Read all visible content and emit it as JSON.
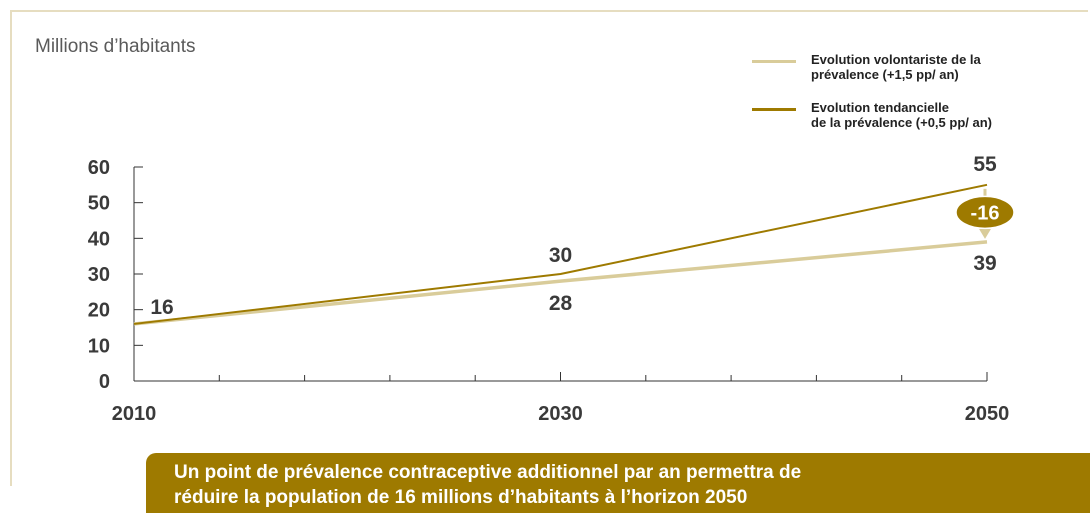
{
  "chart_data": {
    "type": "line",
    "ylabel": "Millions d’habitants",
    "ylim": [
      0,
      60
    ],
    "yticks": [
      0,
      10,
      20,
      30,
      40,
      50,
      60
    ],
    "x": [
      2010,
      2030,
      2050
    ],
    "xticklabels": [
      "2010",
      "2030",
      "2050"
    ],
    "series": [
      {
        "name": "Evolution volontariste de la prévalence (+1,5 pp/ an)",
        "values": [
          16,
          28,
          39
        ],
        "color": "#d9cc9a"
      },
      {
        "name": "Evolution tendancielle de la prévalence (+0,5 pp/ an)",
        "values": [
          16,
          30,
          55
        ],
        "color": "#9e7a00"
      }
    ],
    "data_labels": [
      {
        "text": "16",
        "x": 2010,
        "y": 16
      },
      {
        "text": "30",
        "x": 2030,
        "y": 30
      },
      {
        "text": "28",
        "x": 2030,
        "y": 28
      },
      {
        "text": "55",
        "x": 2050,
        "y": 55
      },
      {
        "text": "39",
        "x": 2050,
        "y": 39
      }
    ],
    "difference_badge": {
      "text": "-16",
      "color": "#9e7a00"
    },
    "grid": false,
    "legend_position": "top-right"
  },
  "legend": {
    "items": [
      {
        "line1": "Evolution volontariste de la",
        "line2": "prévalence (+1,5 pp/ an)",
        "color": "#d9cc9a"
      },
      {
        "line1": "Evolution tendancielle",
        "line2": "de la prévalence (+0,5 pp/ an)",
        "color": "#9e7a00"
      }
    ]
  },
  "banner": {
    "line1": "Un point de prévalence contraceptive additionnel par an permettra de",
    "line2": "réduire la population de 16 millions d’habitants à l’horizon 2050",
    "color": "#9e7a00"
  }
}
